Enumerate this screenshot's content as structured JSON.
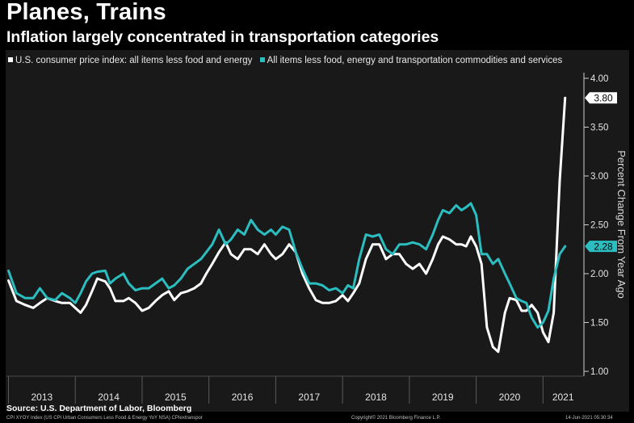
{
  "header": {
    "title": "Planes, Trains",
    "subtitle": "Inflation largely concentrated in transportation categories"
  },
  "legend": {
    "series_a": "U.S. consumer price index: all items less food and energy",
    "series_b": "All items less food, energy and transportation commodities and services"
  },
  "footer": {
    "source": "Source: U.S. Department of Labor, Bloomberg",
    "ticker": "CPI XYOY Index (US CPI Urban Consumers Less Food & Energy YoY NSA) CPIextranspor",
    "copyright": "Copyright© 2021 Bloomberg Finance L.P.",
    "date": "14-Jun-2021 05:30:34"
  },
  "colors": {
    "background": "#000000",
    "panel": "#191919",
    "series_a": "#ffffff",
    "series_b": "#2bbdbf"
  },
  "chart_data": {
    "type": "line",
    "ylabel": "Percent Change From Year Ago",
    "ylim": [
      1.0,
      4.0
    ],
    "yticks": [
      "1.00",
      "1.50",
      "2.00",
      "2.50",
      "3.00",
      "3.50",
      "4.00"
    ],
    "xlim": [
      2012.97,
      2021.6
    ],
    "year_labels": [
      "2013",
      "2014",
      "2015",
      "2016",
      "2017",
      "2018",
      "2019",
      "2020",
      "2021"
    ],
    "last_value_labels": [
      "3.80",
      "2.28"
    ],
    "series": [
      {
        "name": "U.S. consumer price index: all items less food and energy",
        "color": "#ffffff",
        "points": [
          [
            2013.0,
            1.93
          ],
          [
            2013.12,
            1.72
          ],
          [
            2013.25,
            1.68
          ],
          [
            2013.37,
            1.65
          ],
          [
            2013.47,
            1.7
          ],
          [
            2013.58,
            1.75
          ],
          [
            2013.7,
            1.72
          ],
          [
            2013.8,
            1.7
          ],
          [
            2013.92,
            1.7
          ],
          [
            2014.0,
            1.65
          ],
          [
            2014.08,
            1.6
          ],
          [
            2014.16,
            1.68
          ],
          [
            2014.25,
            1.82
          ],
          [
            2014.33,
            1.95
          ],
          [
            2014.45,
            1.92
          ],
          [
            2014.52,
            1.85
          ],
          [
            2014.6,
            1.72
          ],
          [
            2014.72,
            1.72
          ],
          [
            2014.8,
            1.75
          ],
          [
            2014.9,
            1.7
          ],
          [
            2015.0,
            1.62
          ],
          [
            2015.1,
            1.65
          ],
          [
            2015.2,
            1.72
          ],
          [
            2015.3,
            1.78
          ],
          [
            2015.4,
            1.82
          ],
          [
            2015.48,
            1.73
          ],
          [
            2015.58,
            1.8
          ],
          [
            2015.68,
            1.82
          ],
          [
            2015.78,
            1.85
          ],
          [
            2015.88,
            1.9
          ],
          [
            2015.96,
            2.0
          ],
          [
            2016.05,
            2.1
          ],
          [
            2016.15,
            2.22
          ],
          [
            2016.25,
            2.32
          ],
          [
            2016.33,
            2.2
          ],
          [
            2016.43,
            2.15
          ],
          [
            2016.53,
            2.25
          ],
          [
            2016.63,
            2.25
          ],
          [
            2016.73,
            2.2
          ],
          [
            2016.83,
            2.3
          ],
          [
            2016.93,
            2.2
          ],
          [
            2017.0,
            2.15
          ],
          [
            2017.1,
            2.2
          ],
          [
            2017.2,
            2.3
          ],
          [
            2017.3,
            2.22
          ],
          [
            2017.4,
            2.0
          ],
          [
            2017.5,
            1.85
          ],
          [
            2017.6,
            1.73
          ],
          [
            2017.7,
            1.7
          ],
          [
            2017.8,
            1.7
          ],
          [
            2017.9,
            1.72
          ],
          [
            2018.0,
            1.78
          ],
          [
            2018.08,
            1.72
          ],
          [
            2018.16,
            1.8
          ],
          [
            2018.25,
            1.9
          ],
          [
            2018.35,
            2.15
          ],
          [
            2018.45,
            2.3
          ],
          [
            2018.55,
            2.3
          ],
          [
            2018.65,
            2.15
          ],
          [
            2018.75,
            2.2
          ],
          [
            2018.85,
            2.2
          ],
          [
            2018.95,
            2.1
          ],
          [
            2019.05,
            2.05
          ],
          [
            2019.15,
            2.1
          ],
          [
            2019.25,
            2.0
          ],
          [
            2019.35,
            2.15
          ],
          [
            2019.43,
            2.3
          ],
          [
            2019.5,
            2.38
          ],
          [
            2019.6,
            2.35
          ],
          [
            2019.7,
            2.3
          ],
          [
            2019.78,
            2.3
          ],
          [
            2019.85,
            2.28
          ],
          [
            2019.92,
            2.38
          ],
          [
            2020.0,
            2.28
          ],
          [
            2020.08,
            2.1
          ],
          [
            2020.16,
            1.45
          ],
          [
            2020.25,
            1.25
          ],
          [
            2020.33,
            1.2
          ],
          [
            2020.43,
            1.6
          ],
          [
            2020.5,
            1.75
          ],
          [
            2020.6,
            1.73
          ],
          [
            2020.68,
            1.62
          ],
          [
            2020.75,
            1.62
          ],
          [
            2020.83,
            1.68
          ],
          [
            2020.92,
            1.6
          ],
          [
            2021.0,
            1.4
          ],
          [
            2021.08,
            1.3
          ],
          [
            2021.16,
            1.6
          ],
          [
            2021.25,
            2.95
          ],
          [
            2021.33,
            3.8
          ]
        ]
      },
      {
        "name": "All items less food, energy and transportation commodities and services",
        "color": "#2bbdbf",
        "points": [
          [
            2013.0,
            2.03
          ],
          [
            2013.12,
            1.8
          ],
          [
            2013.25,
            1.75
          ],
          [
            2013.37,
            1.75
          ],
          [
            2013.47,
            1.85
          ],
          [
            2013.58,
            1.75
          ],
          [
            2013.7,
            1.73
          ],
          [
            2013.8,
            1.8
          ],
          [
            2013.92,
            1.75
          ],
          [
            2014.0,
            1.7
          ],
          [
            2014.08,
            1.8
          ],
          [
            2014.16,
            1.92
          ],
          [
            2014.25,
            2.0
          ],
          [
            2014.33,
            2.02
          ],
          [
            2014.45,
            2.03
          ],
          [
            2014.52,
            1.9
          ],
          [
            2014.6,
            1.95
          ],
          [
            2014.72,
            2.0
          ],
          [
            2014.8,
            1.9
          ],
          [
            2014.9,
            1.83
          ],
          [
            2015.0,
            1.85
          ],
          [
            2015.1,
            1.85
          ],
          [
            2015.2,
            1.9
          ],
          [
            2015.3,
            1.95
          ],
          [
            2015.4,
            1.85
          ],
          [
            2015.48,
            1.88
          ],
          [
            2015.58,
            1.95
          ],
          [
            2015.68,
            2.05
          ],
          [
            2015.78,
            2.1
          ],
          [
            2015.88,
            2.15
          ],
          [
            2015.96,
            2.22
          ],
          [
            2016.05,
            2.3
          ],
          [
            2016.15,
            2.45
          ],
          [
            2016.25,
            2.3
          ],
          [
            2016.33,
            2.35
          ],
          [
            2016.43,
            2.45
          ],
          [
            2016.53,
            2.4
          ],
          [
            2016.63,
            2.55
          ],
          [
            2016.73,
            2.45
          ],
          [
            2016.83,
            2.4
          ],
          [
            2016.93,
            2.45
          ],
          [
            2017.0,
            2.4
          ],
          [
            2017.1,
            2.48
          ],
          [
            2017.2,
            2.45
          ],
          [
            2017.3,
            2.22
          ],
          [
            2017.4,
            2.05
          ],
          [
            2017.5,
            1.9
          ],
          [
            2017.6,
            1.9
          ],
          [
            2017.7,
            1.88
          ],
          [
            2017.8,
            1.83
          ],
          [
            2017.9,
            1.85
          ],
          [
            2018.0,
            1.8
          ],
          [
            2018.08,
            1.88
          ],
          [
            2018.16,
            1.85
          ],
          [
            2018.25,
            2.15
          ],
          [
            2018.35,
            2.4
          ],
          [
            2018.45,
            2.38
          ],
          [
            2018.55,
            2.4
          ],
          [
            2018.65,
            2.25
          ],
          [
            2018.75,
            2.2
          ],
          [
            2018.85,
            2.3
          ],
          [
            2018.95,
            2.3
          ],
          [
            2019.05,
            2.32
          ],
          [
            2019.15,
            2.3
          ],
          [
            2019.25,
            2.25
          ],
          [
            2019.35,
            2.4
          ],
          [
            2019.43,
            2.55
          ],
          [
            2019.5,
            2.65
          ],
          [
            2019.6,
            2.62
          ],
          [
            2019.7,
            2.7
          ],
          [
            2019.78,
            2.65
          ],
          [
            2019.85,
            2.68
          ],
          [
            2019.92,
            2.72
          ],
          [
            2020.0,
            2.6
          ],
          [
            2020.08,
            2.2
          ],
          [
            2020.16,
            2.2
          ],
          [
            2020.25,
            2.1
          ],
          [
            2020.33,
            2.15
          ],
          [
            2020.43,
            2.0
          ],
          [
            2020.5,
            1.9
          ],
          [
            2020.6,
            1.75
          ],
          [
            2020.68,
            1.72
          ],
          [
            2020.75,
            1.7
          ],
          [
            2020.83,
            1.55
          ],
          [
            2020.92,
            1.45
          ],
          [
            2021.0,
            1.5
          ],
          [
            2021.08,
            1.62
          ],
          [
            2021.16,
            1.95
          ],
          [
            2021.25,
            2.2
          ],
          [
            2021.33,
            2.28
          ]
        ]
      }
    ]
  }
}
